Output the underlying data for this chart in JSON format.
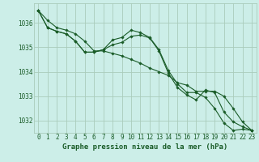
{
  "background_color": "#cceee8",
  "grid_color": "#aaccbb",
  "line_color": "#1a5c28",
  "marker_color": "#1a5c28",
  "xlabel": "Graphe pression niveau de la mer (hPa)",
  "xlabel_fontsize": 6.5,
  "tick_fontsize": 5.5,
  "ylim": [
    1031.5,
    1036.8
  ],
  "xlim": [
    -0.5,
    23.5
  ],
  "yticks": [
    1032,
    1033,
    1034,
    1035,
    1036
  ],
  "xticks": [
    0,
    1,
    2,
    3,
    4,
    5,
    6,
    7,
    8,
    9,
    10,
    11,
    12,
    13,
    14,
    15,
    16,
    17,
    18,
    19,
    20,
    21,
    22,
    23
  ],
  "series": [
    [
      1036.5,
      1036.1,
      1035.8,
      1035.7,
      1035.55,
      1035.25,
      1034.85,
      1034.85,
      1034.75,
      1034.65,
      1034.5,
      1034.35,
      1034.15,
      1034.0,
      1033.85,
      1033.55,
      1033.45,
      1033.2,
      1033.2,
      1033.2,
      1033.0,
      1032.5,
      1031.95,
      1031.6
    ],
    [
      1036.5,
      1035.8,
      1035.65,
      1035.55,
      1035.25,
      1034.8,
      1034.8,
      1034.9,
      1035.3,
      1035.4,
      1035.7,
      1035.6,
      1035.4,
      1034.9,
      1034.05,
      1033.5,
      1033.15,
      1033.15,
      1032.95,
      1032.5,
      1031.9,
      1031.6,
      1031.65,
      1031.6
    ],
    [
      1036.5,
      1035.8,
      1035.65,
      1035.55,
      1035.25,
      1034.8,
      1034.8,
      1034.9,
      1035.1,
      1035.2,
      1035.45,
      1035.5,
      1035.38,
      1034.85,
      1033.95,
      1033.35,
      1033.05,
      1032.85,
      1033.25,
      1033.15,
      1032.35,
      1031.95,
      1031.75,
      1031.6
    ]
  ]
}
